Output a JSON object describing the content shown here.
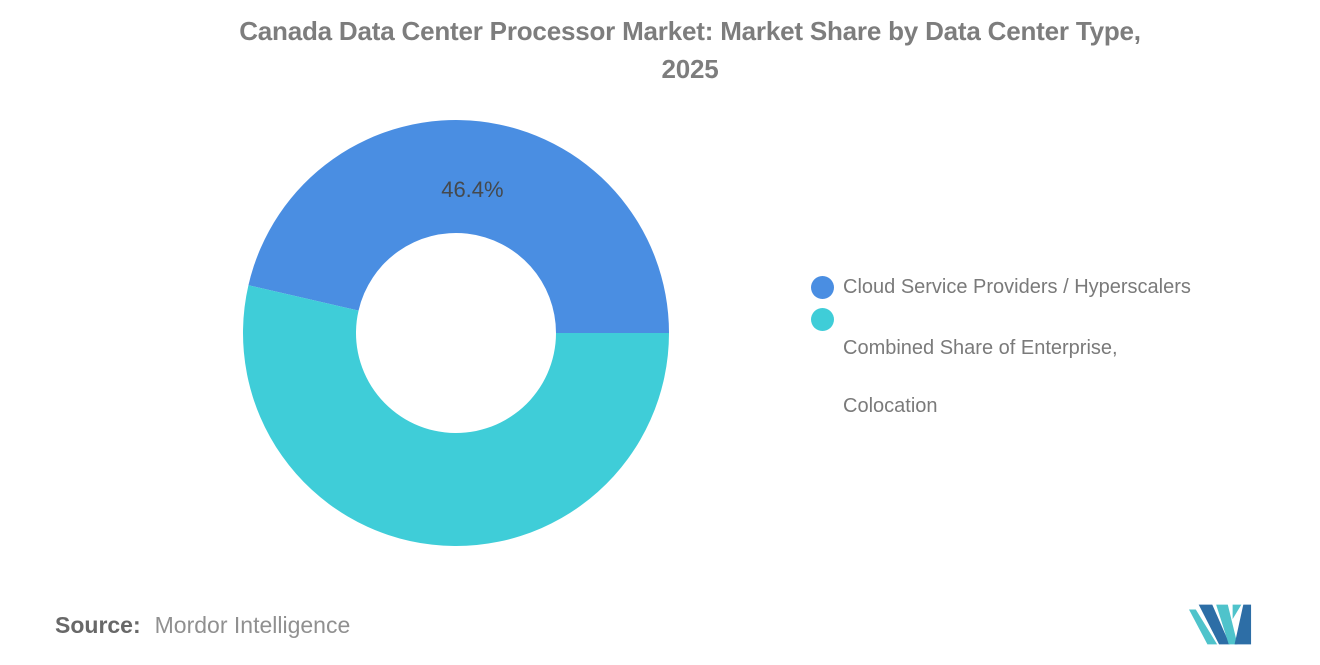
{
  "title": {
    "line1": "Canada Data Center Processor Market: Market Share by Data Center Type,",
    "line2": "2025"
  },
  "chart_data": {
    "type": "pie",
    "subtype": "donut",
    "title": "Canada Data Center Processor Market: Market Share by Data Center Type, 2025",
    "series": [
      {
        "name": "Cloud Service Providers / Hyperscalers",
        "value": 46.4,
        "color": "#4A8EE2",
        "data_label": "46.4%"
      },
      {
        "name": "Combined Share of Enterprise, Colocation",
        "value": 53.6,
        "color": "#3FCDD8",
        "data_label": ""
      }
    ],
    "start_angle_deg": -77.04,
    "inner_radius_ratio": 0.47,
    "legend_position": "right",
    "grid": "off",
    "data_label_color": "#45494D"
  },
  "legend": {
    "items": [
      {
        "color": "#4A8EE2",
        "lines": [
          "Cloud Service Providers / Hyperscalers"
        ]
      },
      {
        "color": "#3FCDD8",
        "lines": [
          "Combined Share of Enterprise,",
          "Colocation"
        ]
      }
    ]
  },
  "source": {
    "label": "Source:",
    "value": "Mordor Intelligence"
  },
  "logo": {
    "name": "mordor-intelligence-logo",
    "dark_color": "#2D6EA6",
    "teal_color": "#4FC3CB"
  }
}
